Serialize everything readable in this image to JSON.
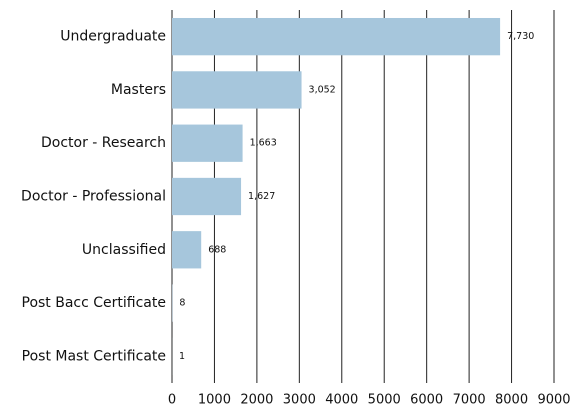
{
  "chart_data": {
    "type": "bar",
    "orientation": "horizontal",
    "categories": [
      "Undergraduate",
      "Masters",
      "Doctor - Research",
      "Doctor - Professional",
      "Unclassified",
      "Post Bacc Certificate",
      "Post Mast Certificate"
    ],
    "values": [
      7730,
      3052,
      1663,
      1627,
      688,
      8,
      1
    ],
    "value_labels": [
      "7,730",
      "3,052",
      "1,663",
      "1,627",
      "688",
      "8",
      "1"
    ],
    "color": "#a6c6dc",
    "xlim": [
      0,
      9000
    ],
    "xticks": [
      0,
      1000,
      2000,
      3000,
      4000,
      5000,
      6000,
      7000,
      8000,
      9000
    ],
    "grid": true
  }
}
